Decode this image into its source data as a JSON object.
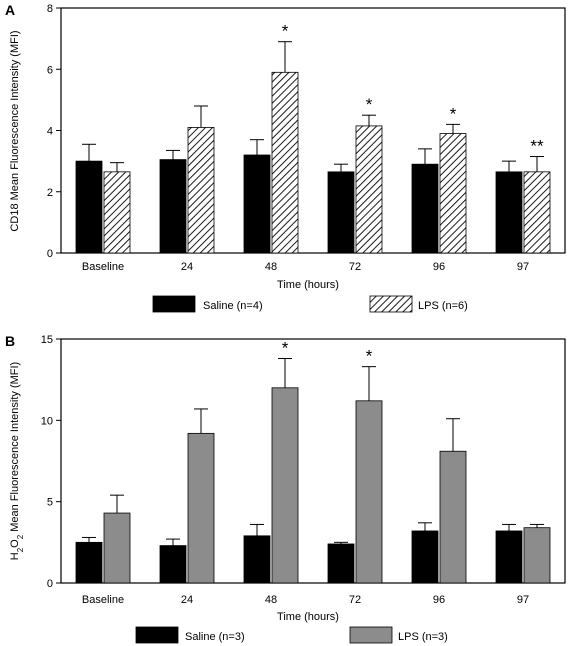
{
  "chart_data": [
    {
      "panel": "A",
      "type": "bar",
      "xlabel": "Time (hours)",
      "ylabel": "CD18 Mean Fluorescence Intensity (MFI)",
      "ylim": [
        0,
        8
      ],
      "yticks": [
        0,
        2,
        4,
        6,
        8
      ],
      "categories": [
        "Baseline",
        "24",
        "48",
        "72",
        "96",
        "97"
      ],
      "series": [
        {
          "name": "Saline (n=4)",
          "fill": "solid",
          "color": "#000000",
          "values": [
            3.0,
            3.05,
            3.2,
            2.65,
            2.9,
            2.65
          ],
          "errors": [
            0.55,
            0.3,
            0.5,
            0.25,
            0.5,
            0.35
          ]
        },
        {
          "name": "LPS (n=6)",
          "fill": "hatch",
          "color": "#000000",
          "values": [
            2.65,
            4.1,
            5.9,
            4.15,
            3.9,
            2.65
          ],
          "errors": [
            0.3,
            0.7,
            1.0,
            0.35,
            0.3,
            0.5
          ]
        }
      ],
      "annotations": [
        "",
        "",
        "*",
        "*",
        "*",
        "**"
      ]
    },
    {
      "panel": "B",
      "type": "bar",
      "xlabel": "Time (hours)",
      "ylabel": "H2O2 Mean Fluorescence Intensity (MFI)",
      "ylabel_parts": {
        "pre": "H",
        "sub1": "2",
        "mid": "O",
        "sub2": "2",
        "post": " Mean Fluorescence Intensity (MFI)"
      },
      "ylim": [
        0,
        15
      ],
      "yticks": [
        0,
        5,
        10,
        15
      ],
      "categories": [
        "Baseline",
        "24",
        "48",
        "72",
        "96",
        "97"
      ],
      "series": [
        {
          "name": "Saline (n=3)",
          "fill": "solid",
          "color": "#000000",
          "values": [
            2.5,
            2.3,
            2.9,
            2.4,
            3.2,
            3.2
          ],
          "errors": [
            0.3,
            0.4,
            0.7,
            0.1,
            0.5,
            0.4
          ]
        },
        {
          "name": "LPS (n=3)",
          "fill": "gray",
          "color": "#8c8c8c",
          "values": [
            4.3,
            9.2,
            12.0,
            11.2,
            8.1,
            3.4
          ],
          "errors": [
            1.1,
            1.5,
            1.8,
            2.1,
            2.0,
            0.2
          ]
        }
      ],
      "annotations": [
        "",
        "",
        "*",
        "*",
        "",
        ""
      ]
    }
  ]
}
